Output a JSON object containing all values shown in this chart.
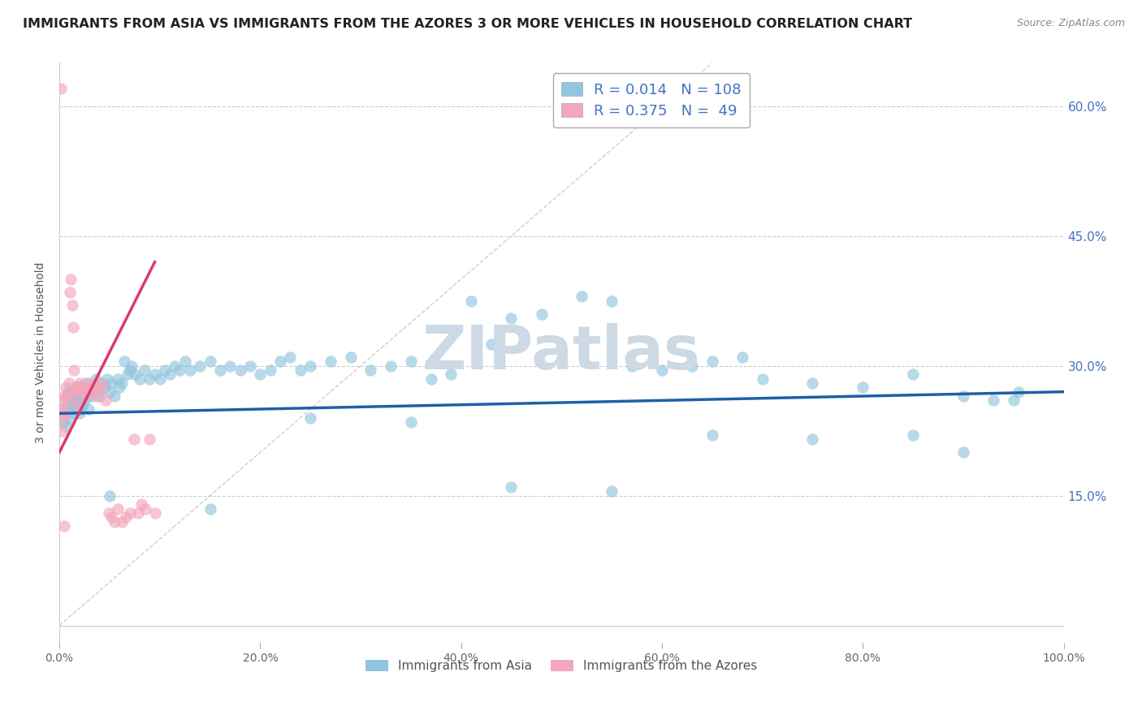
{
  "title": "IMMIGRANTS FROM ASIA VS IMMIGRANTS FROM THE AZORES 3 OR MORE VEHICLES IN HOUSEHOLD CORRELATION CHART",
  "source": "Source: ZipAtlas.com",
  "ylabel": "3 or more Vehicles in Household",
  "legend_labels": [
    "Immigrants from Asia",
    "Immigrants from the Azores"
  ],
  "blue_color": "#92c5de",
  "pink_color": "#f4a6bc",
  "blue_line_color": "#1f5fa6",
  "pink_line_color": "#d63b6e",
  "R_blue": 0.014,
  "N_blue": 108,
  "R_pink": 0.375,
  "N_pink": 49,
  "xlim": [
    0,
    100
  ],
  "ylim": [
    -2,
    65
  ],
  "xtick_vals": [
    0,
    20,
    40,
    60,
    80,
    100
  ],
  "xtick_labels": [
    "0.0%",
    "20.0%",
    "40.0%",
    "60.0%",
    "80.0%",
    "100.0%"
  ],
  "ytick_labels": [
    "15.0%",
    "30.0%",
    "45.0%",
    "60.0%"
  ],
  "ytick_values": [
    15,
    30,
    45,
    60
  ],
  "blue_x": [
    0.3,
    0.4,
    0.5,
    0.6,
    0.7,
    0.8,
    0.9,
    1.0,
    1.1,
    1.2,
    1.3,
    1.4,
    1.5,
    1.6,
    1.7,
    1.8,
    1.9,
    2.0,
    2.1,
    2.2,
    2.3,
    2.4,
    2.5,
    2.6,
    2.7,
    2.8,
    2.9,
    3.0,
    3.2,
    3.4,
    3.6,
    3.8,
    4.0,
    4.2,
    4.5,
    4.8,
    5.0,
    5.2,
    5.5,
    5.8,
    6.0,
    6.2,
    6.5,
    6.8,
    7.0,
    7.2,
    7.5,
    8.0,
    8.5,
    9.0,
    9.5,
    10.0,
    10.5,
    11.0,
    11.5,
    12.0,
    12.5,
    13.0,
    14.0,
    15.0,
    16.0,
    17.0,
    18.0,
    19.0,
    20.0,
    21.0,
    22.0,
    23.0,
    24.0,
    25.0,
    27.0,
    29.0,
    31.0,
    33.0,
    35.0,
    37.0,
    39.0,
    41.0,
    43.0,
    45.0,
    48.0,
    50.0,
    52.0,
    55.0,
    57.0,
    60.0,
    63.0,
    65.0,
    68.0,
    70.0,
    75.0,
    80.0,
    85.0,
    90.0,
    93.0,
    95.5,
    1.05,
    1.15,
    1.25,
    1.35,
    1.45,
    1.55,
    1.65,
    1.75,
    1.85,
    1.95,
    2.05,
    2.15
  ],
  "blue_y": [
    25.0,
    23.5,
    24.5,
    23.0,
    26.5,
    25.5,
    27.0,
    24.0,
    26.0,
    25.0,
    26.5,
    24.5,
    25.5,
    26.0,
    27.5,
    26.5,
    25.0,
    24.5,
    27.0,
    26.0,
    25.5,
    27.5,
    26.0,
    28.0,
    27.0,
    26.5,
    25.0,
    27.0,
    26.5,
    27.5,
    28.5,
    27.0,
    26.5,
    28.0,
    27.5,
    28.5,
    27.0,
    28.0,
    26.5,
    28.5,
    27.5,
    28.0,
    30.5,
    29.0,
    29.5,
    30.0,
    29.0,
    28.5,
    29.5,
    28.5,
    29.0,
    28.5,
    29.5,
    29.0,
    30.0,
    29.5,
    30.5,
    29.5,
    30.0,
    30.5,
    29.5,
    30.0,
    29.5,
    30.0,
    29.0,
    29.5,
    30.5,
    31.0,
    29.5,
    30.0,
    30.5,
    31.0,
    29.5,
    30.0,
    30.5,
    28.5,
    29.0,
    37.5,
    32.5,
    35.5,
    36.0,
    32.0,
    38.0,
    37.5,
    30.0,
    29.5,
    30.0,
    30.5,
    31.0,
    28.5,
    28.0,
    27.5,
    29.0,
    26.5,
    26.0,
    27.0,
    27.0,
    26.5,
    27.0,
    26.5,
    25.5,
    26.0,
    25.5,
    26.5,
    25.0,
    26.5,
    25.5,
    25.0
  ],
  "blue_x_outliers": [
    5.0,
    15.0,
    25.0,
    35.0,
    45.0,
    55.0,
    65.0,
    75.0,
    85.0,
    90.0,
    95.0
  ],
  "blue_y_outliers": [
    15.0,
    13.5,
    24.0,
    23.5,
    16.0,
    15.5,
    22.0,
    21.5,
    22.0,
    20.0,
    26.0
  ],
  "pink_x": [
    0.15,
    0.25,
    0.35,
    0.45,
    0.55,
    0.65,
    0.75,
    0.85,
    0.95,
    1.05,
    1.15,
    1.25,
    1.35,
    1.45,
    1.55,
    1.65,
    1.75,
    1.85,
    1.95,
    2.05,
    2.15,
    2.3,
    2.5,
    2.7,
    2.9,
    3.1,
    3.3,
    3.5,
    3.8,
    4.0,
    4.3,
    4.6,
    4.9,
    5.2,
    5.5,
    5.8,
    6.2,
    6.6,
    7.0,
    7.4,
    7.8,
    8.2,
    8.6,
    9.0,
    9.5,
    0.2,
    0.3,
    0.4,
    0.5
  ],
  "pink_y": [
    62.0,
    22.5,
    26.0,
    26.5,
    24.5,
    27.5,
    26.0,
    26.5,
    28.0,
    38.5,
    40.0,
    37.0,
    34.5,
    29.5,
    27.5,
    27.0,
    25.5,
    27.5,
    27.0,
    28.0,
    27.5,
    27.0,
    27.5,
    26.5,
    28.0,
    27.5,
    27.0,
    27.5,
    26.5,
    28.0,
    27.5,
    26.0,
    13.0,
    12.5,
    12.0,
    13.5,
    12.0,
    12.5,
    13.0,
    21.5,
    13.0,
    14.0,
    13.5,
    21.5,
    13.0,
    24.5,
    25.0,
    24.0,
    11.5
  ],
  "background_color": "#ffffff",
  "grid_color": "#cccccc",
  "watermark": "ZIPatlas",
  "watermark_color": "#cdd9e5"
}
